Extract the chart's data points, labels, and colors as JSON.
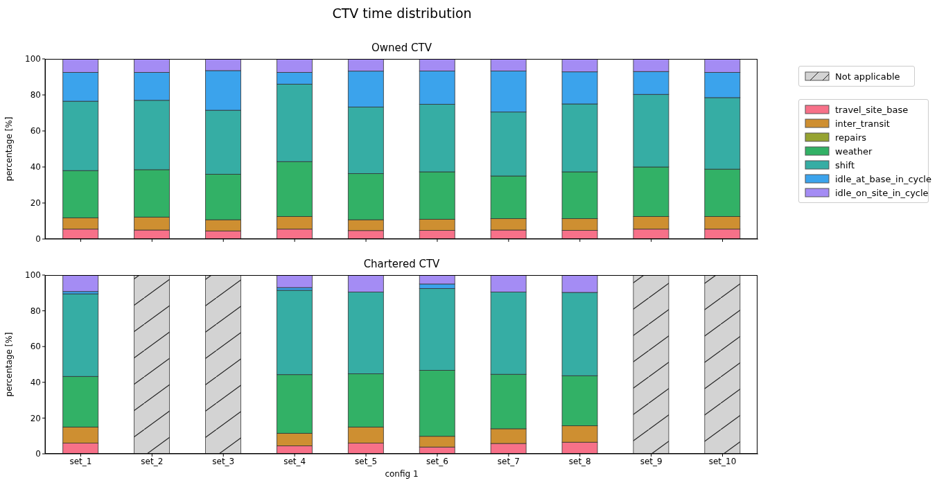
{
  "chart_data": [
    {
      "type": "bar",
      "title": "Owned CTV",
      "annotations": [
        "CTV time distribution"
      ],
      "ylabel": "percentage [%]",
      "stacked": true,
      "categories": [
        null,
        null,
        null,
        null,
        null,
        null,
        null,
        null,
        null,
        null
      ],
      "ylim": [
        0,
        100
      ],
      "yticks": [
        0,
        20,
        40,
        60,
        80,
        100
      ],
      "tick_labels": "y",
      "legend": "right",
      "series": [
        {
          "name": "travel_site_base",
          "color": "#f77189",
          "values": [
            5.5,
            5,
            4.5,
            5.5,
            4.7,
            4.8,
            5,
            4.8,
            5.5,
            5.5
          ]
        },
        {
          "name": "inter_transit",
          "color": "#ce8f31",
          "values": [
            6.3,
            7.2,
            6.2,
            7,
            6,
            6.2,
            6.3,
            6.5,
            7,
            7
          ]
        },
        {
          "name": "repairs",
          "color": "#96a331",
          "values": [
            0,
            0,
            0,
            0,
            0,
            0,
            0,
            0,
            0,
            0
          ]
        },
        {
          "name": "weather",
          "color": "#32b166",
          "values": [
            26.2,
            26.3,
            25.3,
            30.5,
            25.6,
            26.3,
            23.7,
            26,
            27.5,
            26.3
          ]
        },
        {
          "name": "shift",
          "color": "#36ada4",
          "values": [
            38.5,
            38.5,
            35.5,
            43,
            37,
            37.5,
            35.5,
            37.7,
            40.3,
            39.7
          ]
        },
        {
          "name": "idle_at_base_in_cycle",
          "color": "#3ba3ec",
          "values": [
            16,
            15.5,
            22,
            6.5,
            19.9,
            18.5,
            22.8,
            17.8,
            12.7,
            14
          ]
        },
        {
          "name": "idle_on_site_in_cycle",
          "color": "#a48cf4",
          "values": [
            7.5,
            7.5,
            6.5,
            7.5,
            6.8,
            6.7,
            6.7,
            7.2,
            7,
            7.5
          ]
        }
      ]
    },
    {
      "type": "bar",
      "title": "Chartered CTV",
      "xlabel": "config 1",
      "ylabel": "percentage [%]",
      "stacked": true,
      "categories": [
        "set_1",
        "set_2",
        "set_3",
        "set_4",
        "set_5",
        "set_6",
        "set_7",
        "set_8",
        "set_9",
        "set_10"
      ],
      "ylim": [
        0,
        100
      ],
      "yticks": [
        0,
        20,
        40,
        60,
        80,
        100
      ],
      "legend": "right",
      "series": [
        {
          "color": "#f77189",
          "values": [
            6,
            null,
            null,
            4.5,
            6,
            3.8,
            5.8,
            6.5,
            null,
            null
          ]
        },
        {
          "color": "#ce8f31",
          "values": [
            9,
            null,
            null,
            7,
            9,
            6,
            8.2,
            9.2,
            null,
            null
          ]
        },
        {
          "color": "#96a331",
          "values": [
            0,
            null,
            null,
            0,
            0,
            0,
            0,
            0,
            null,
            null
          ]
        },
        {
          "color": "#32b166",
          "values": [
            28.3,
            null,
            null,
            32.8,
            29.8,
            36.9,
            30.5,
            28,
            null,
            null
          ]
        },
        {
          "color": "#36ada4",
          "values": [
            46.2,
            null,
            null,
            47.2,
            45.7,
            45.8,
            46,
            46.6,
            null,
            null
          ]
        },
        {
          "color": "#3ba3ec",
          "values": [
            1.3,
            null,
            null,
            1.5,
            0,
            2.5,
            0,
            0,
            null,
            null
          ]
        },
        {
          "color": "#a48cf4",
          "values": [
            9.2,
            null,
            null,
            7,
            9.5,
            5,
            9.5,
            9.7,
            null,
            null
          ]
        },
        {
          "name": "Not applicable",
          "color": "#d3d3d3",
          "values": [
            null,
            100,
            100,
            null,
            null,
            null,
            null,
            null,
            100,
            100
          ]
        }
      ]
    }
  ]
}
